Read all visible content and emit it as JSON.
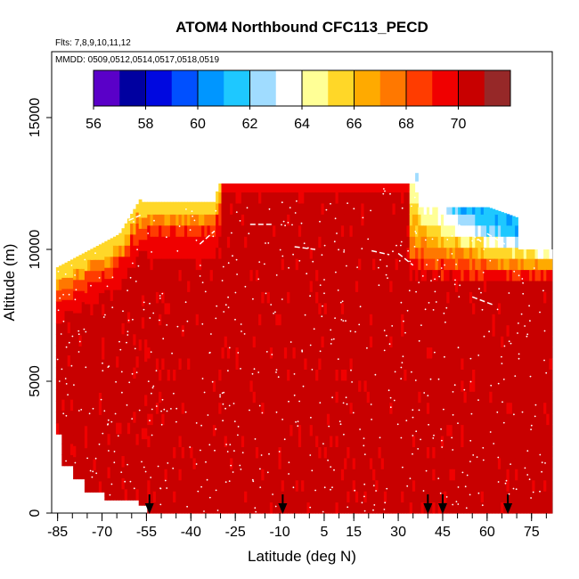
{
  "chart_data": {
    "type": "heatmap",
    "title": "ATOM4 Northbound CFC113_PECD",
    "flights_note": "Flts: 7,8,9,10,11,12",
    "dates_note": "MMDD: 0509,0512,0514,0517,0518,0519",
    "xlabel": "Latitude (deg N)",
    "ylabel": "Altitude (m)",
    "xlim": [
      -87,
      82
    ],
    "ylim": [
      0,
      17500
    ],
    "x_ticks": [
      -85,
      -70,
      -55,
      -40,
      -25,
      -10,
      5,
      15,
      30,
      45,
      60,
      75
    ],
    "y_ticks": [
      0,
      5000,
      10000,
      15000
    ],
    "colorbar": {
      "ticks": [
        56,
        58,
        60,
        62,
        64,
        66,
        68,
        70
      ],
      "range": [
        56,
        72
      ],
      "colors": [
        "#5a00c8",
        "#0000a0",
        "#0008e0",
        "#0050ff",
        "#0096ff",
        "#1ec8ff",
        "#a0dcff",
        "#ffffff",
        "#ffff96",
        "#ffd728",
        "#ffaa00",
        "#ff7800",
        "#ff3c00",
        "#f00000",
        "#c80000",
        "#962828"
      ]
    },
    "flight_markers_lat": [
      -54,
      -9,
      40,
      45,
      67
    ],
    "field_summary": [
      {
        "region": "ceiling 12500 m, 10N to 35N",
        "value": 70
      },
      {
        "region": "top edge near 8000-11000 m, south of 45S",
        "value": 66
      },
      {
        "region": "upper troposphere 50N-70N, 9500-11500 m",
        "value": 61
      },
      {
        "region": "bulk troposphere 0-8000 m",
        "value": 70.3
      }
    ]
  }
}
